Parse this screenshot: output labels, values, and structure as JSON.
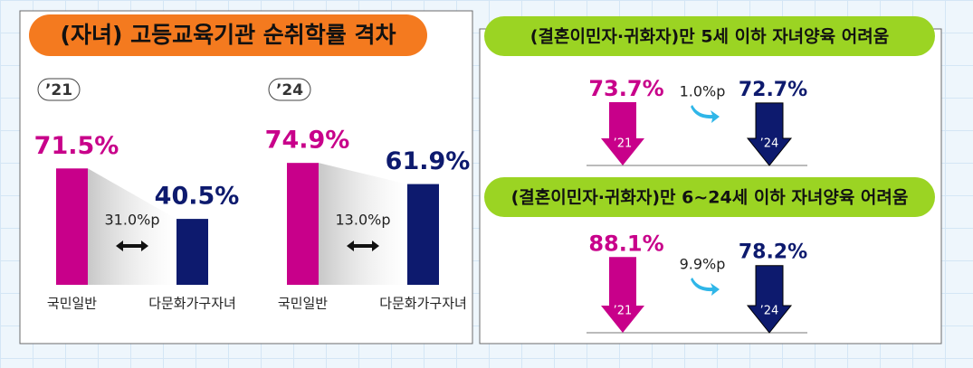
{
  "left": {
    "title": "(자녀) 고등교육기관 순취학률 격차",
    "categories": [
      "국민일반",
      "다문화가구자녀"
    ],
    "colors": [
      "#c8008a",
      "#0d1a6e"
    ],
    "groups": [
      {
        "year": "’21",
        "values": [
          71.5,
          40.5
        ],
        "value_labels": [
          "71.5%",
          "40.5%"
        ],
        "gap": 31.0,
        "gap_label": "31.0%p"
      },
      {
        "year": "’24",
        "values": [
          74.9,
          61.9
        ],
        "value_labels": [
          "74.9%",
          "61.9%"
        ],
        "gap": 13.0,
        "gap_label": "13.0%p"
      }
    ]
  },
  "right": [
    {
      "title": "(결혼이민자·귀화자)만 5세 이하 자녀양육 어려움",
      "years": [
        "’21",
        "’24"
      ],
      "values": [
        73.7,
        72.7
      ],
      "value_labels": [
        "73.7%",
        "72.7%"
      ],
      "change": 1.0,
      "change_label": "1.0%p"
    },
    {
      "title": "(결혼이민자·귀화자)만 6~24세 이하 자녀양육 어려움",
      "years": [
        "’21",
        "’24"
      ],
      "values": [
        88.1,
        78.2
      ],
      "value_labels": [
        "88.1%",
        "78.2%"
      ],
      "change": 9.9,
      "change_label": "9.9%p"
    }
  ]
}
